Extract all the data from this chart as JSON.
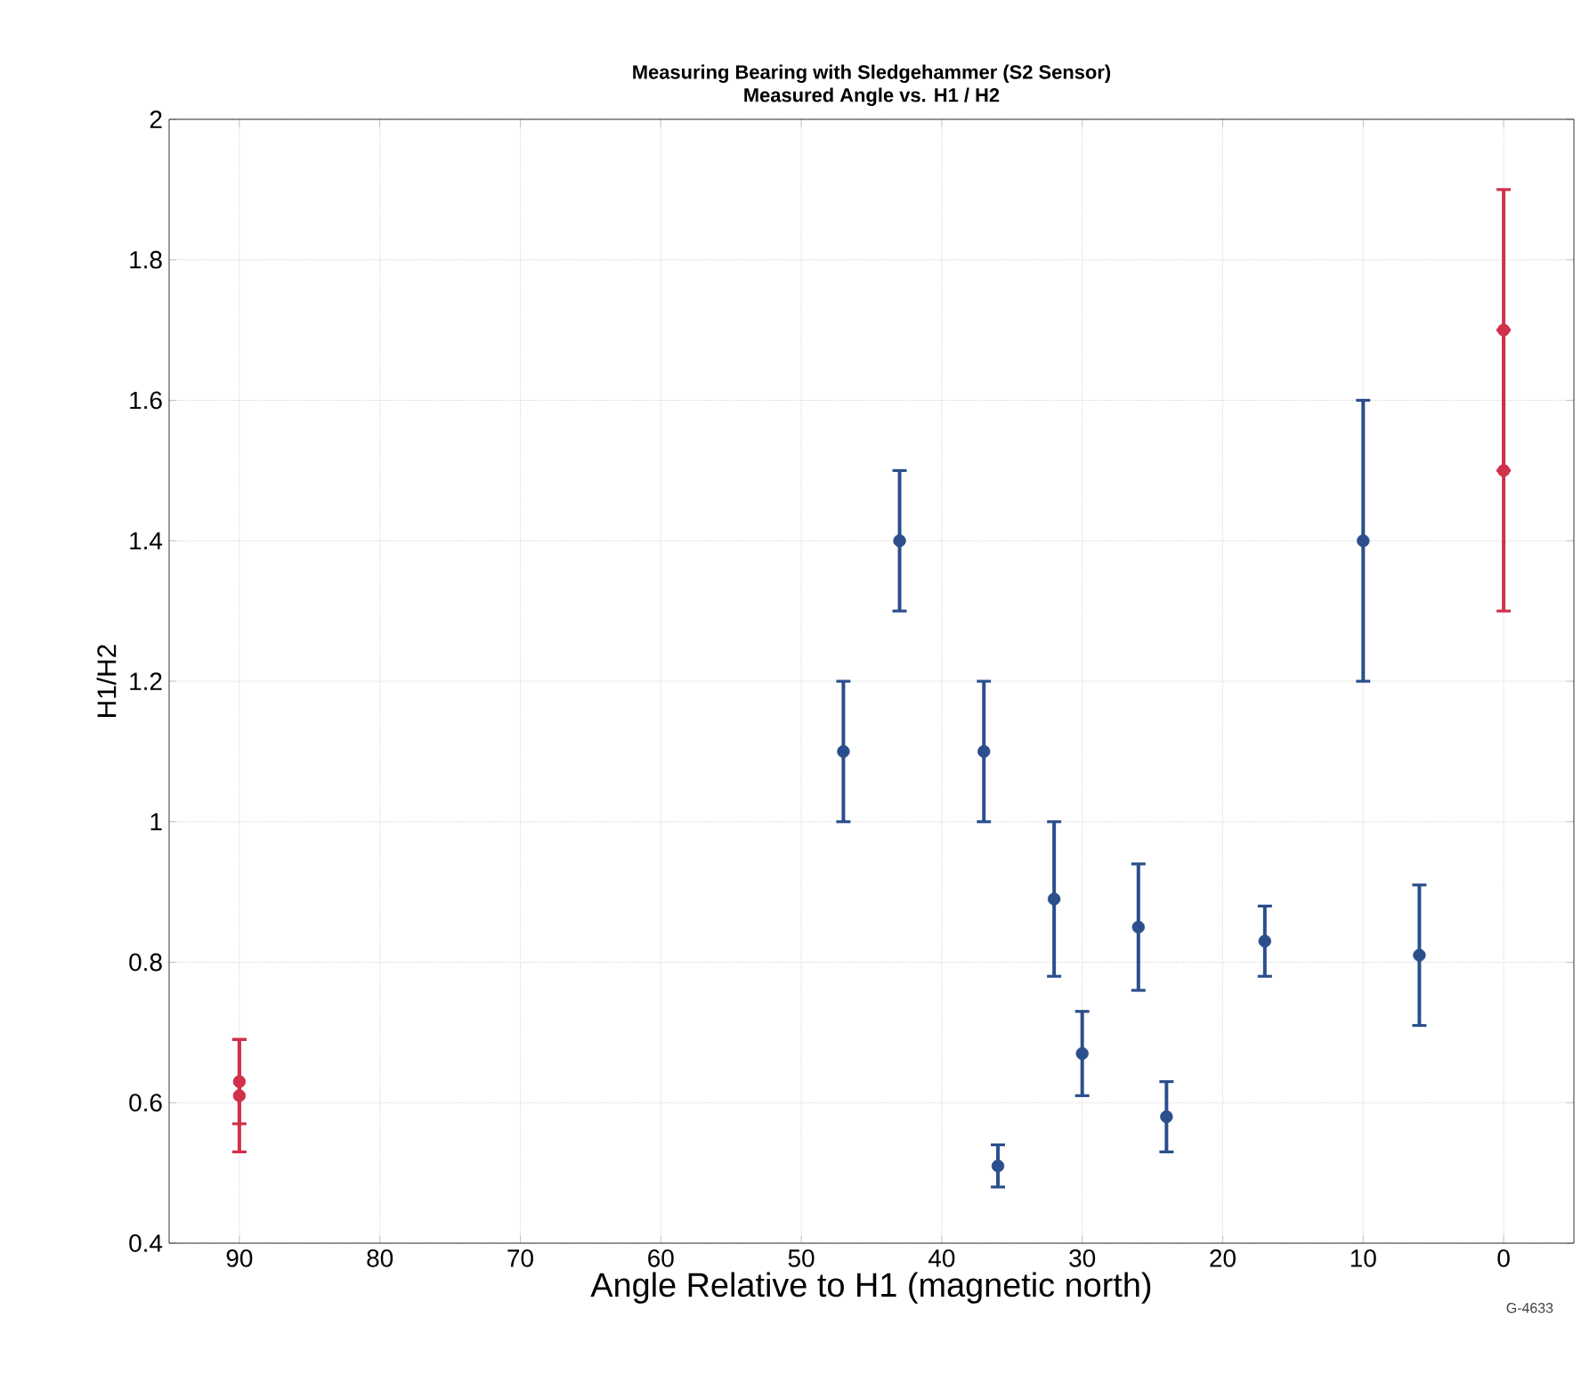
{
  "chart_data": {
    "type": "scatter",
    "title": "Measuring Bearing with Sledgehammer (S2 Sensor)",
    "subtitle": "Measured Angle vs. H1 / H2",
    "xlabel": "Angle Relative to H1 (magnetic north)",
    "ylabel": "H1/H2",
    "xlim": [
      95,
      -5
    ],
    "ylim": [
      0.4,
      2
    ],
    "xticks": [
      90,
      80,
      70,
      60,
      50,
      40,
      30,
      20,
      10,
      0
    ],
    "yticks": [
      0.4,
      0.6,
      0.8,
      1,
      1.2,
      1.4,
      1.6,
      1.8,
      2
    ],
    "grid": true,
    "marker": "circle",
    "series": [
      {
        "color": "#2b4f8c",
        "x": [
          47,
          43,
          37,
          36,
          32,
          30,
          26,
          24,
          17,
          10,
          6
        ],
        "values": [
          1.1,
          1.4,
          1.1,
          0.51,
          0.89,
          0.67,
          0.85,
          0.58,
          0.83,
          1.4,
          0.81
        ],
        "errors": [
          [
            1.0,
            1.2
          ],
          [
            1.3,
            1.5
          ],
          [
            1.0,
            1.2
          ],
          [
            0.48,
            0.54
          ],
          [
            0.78,
            1.0
          ],
          [
            0.61,
            0.73
          ],
          [
            0.76,
            0.94
          ],
          [
            0.53,
            0.63
          ],
          [
            0.78,
            0.88
          ],
          [
            1.2,
            1.6
          ],
          [
            0.71,
            0.91
          ]
        ]
      },
      {
        "color": "#d0304a",
        "x": [
          90,
          90,
          0,
          0
        ],
        "values": [
          0.63,
          0.61,
          1.7,
          1.5
        ],
        "errors": [
          [
            0.57,
            0.69
          ],
          [
            0.53,
            0.69
          ],
          [
            1.5,
            1.9
          ],
          [
            1.3,
            1.7
          ]
        ]
      }
    ],
    "annotations": [
      "G-4633"
    ]
  }
}
